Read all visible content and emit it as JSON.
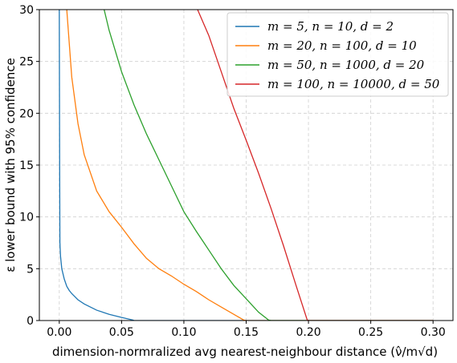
{
  "chart_data": {
    "type": "line",
    "title": "",
    "xlabel": "dimension-normralized avg nearest-neighbour distance (ν̂/m√d)",
    "ylabel": "ε lower bound with 95% confidence",
    "xlim": [
      -0.016,
      0.316
    ],
    "ylim": [
      0,
      30
    ],
    "xticks": [
      "0.00",
      "0.05",
      "0.10",
      "0.15",
      "0.20",
      "0.25",
      "0.30"
    ],
    "xtick_values": [
      0.0,
      0.05,
      0.1,
      0.15,
      0.2,
      0.25,
      0.3
    ],
    "yticks": [
      "0",
      "5",
      "10",
      "15",
      "20",
      "25",
      "30"
    ],
    "ytick_values": [
      0,
      5,
      10,
      15,
      20,
      25,
      30
    ],
    "grid": true,
    "legend_position": "top-right",
    "series": [
      {
        "name": "m = 5, n = 10, d = 2",
        "color": "#1f77b4",
        "x": [
          0.0,
          0.0003,
          0.0005,
          0.001,
          0.002,
          0.004,
          0.006,
          0.008,
          0.01,
          0.015,
          0.02,
          0.025,
          0.03,
          0.04,
          0.05,
          0.059,
          0.06,
          0.07,
          0.08,
          0.1,
          0.15,
          0.2,
          0.25,
          0.3
        ],
        "y": [
          30,
          15,
          7.5,
          6.2,
          5.0,
          4.0,
          3.3,
          2.9,
          2.6,
          2.0,
          1.6,
          1.3,
          1.0,
          0.6,
          0.3,
          0.05,
          0,
          0,
          0,
          0,
          0,
          0,
          0,
          0
        ]
      },
      {
        "name": "m = 20, n = 100, d = 10",
        "color": "#ff7f0e",
        "x": [
          0.006,
          0.01,
          0.015,
          0.02,
          0.03,
          0.04,
          0.05,
          0.06,
          0.07,
          0.08,
          0.09,
          0.1,
          0.11,
          0.12,
          0.13,
          0.14,
          0.148,
          0.15,
          0.2,
          0.25,
          0.3
        ],
        "y": [
          30,
          23.5,
          19.0,
          16.0,
          12.5,
          10.5,
          9.0,
          7.4,
          6.0,
          5.0,
          4.3,
          3.5,
          2.8,
          2.0,
          1.3,
          0.6,
          0.05,
          0,
          0,
          0,
          0
        ]
      },
      {
        "name": "m = 50, n = 1000, d = 20",
        "color": "#2ca02c",
        "x": [
          0.036,
          0.04,
          0.05,
          0.06,
          0.07,
          0.08,
          0.09,
          0.1,
          0.11,
          0.12,
          0.13,
          0.14,
          0.15,
          0.16,
          0.168,
          0.17,
          0.2,
          0.25,
          0.3
        ],
        "y": [
          30,
          28.0,
          24.0,
          20.8,
          18.0,
          15.5,
          13.0,
          10.5,
          8.6,
          6.8,
          5.0,
          3.4,
          2.1,
          0.8,
          0.05,
          0,
          0,
          0,
          0
        ]
      },
      {
        "name": "m = 100, n = 10000, d = 50",
        "color": "#d62728",
        "x": [
          0.111,
          0.12,
          0.13,
          0.14,
          0.15,
          0.16,
          0.17,
          0.18,
          0.19,
          0.199,
          0.2,
          0.25,
          0.3
        ],
        "y": [
          30,
          27.5,
          24.0,
          20.5,
          17.4,
          14.2,
          10.8,
          7.2,
          3.4,
          0.05,
          0,
          0,
          0
        ]
      }
    ]
  }
}
